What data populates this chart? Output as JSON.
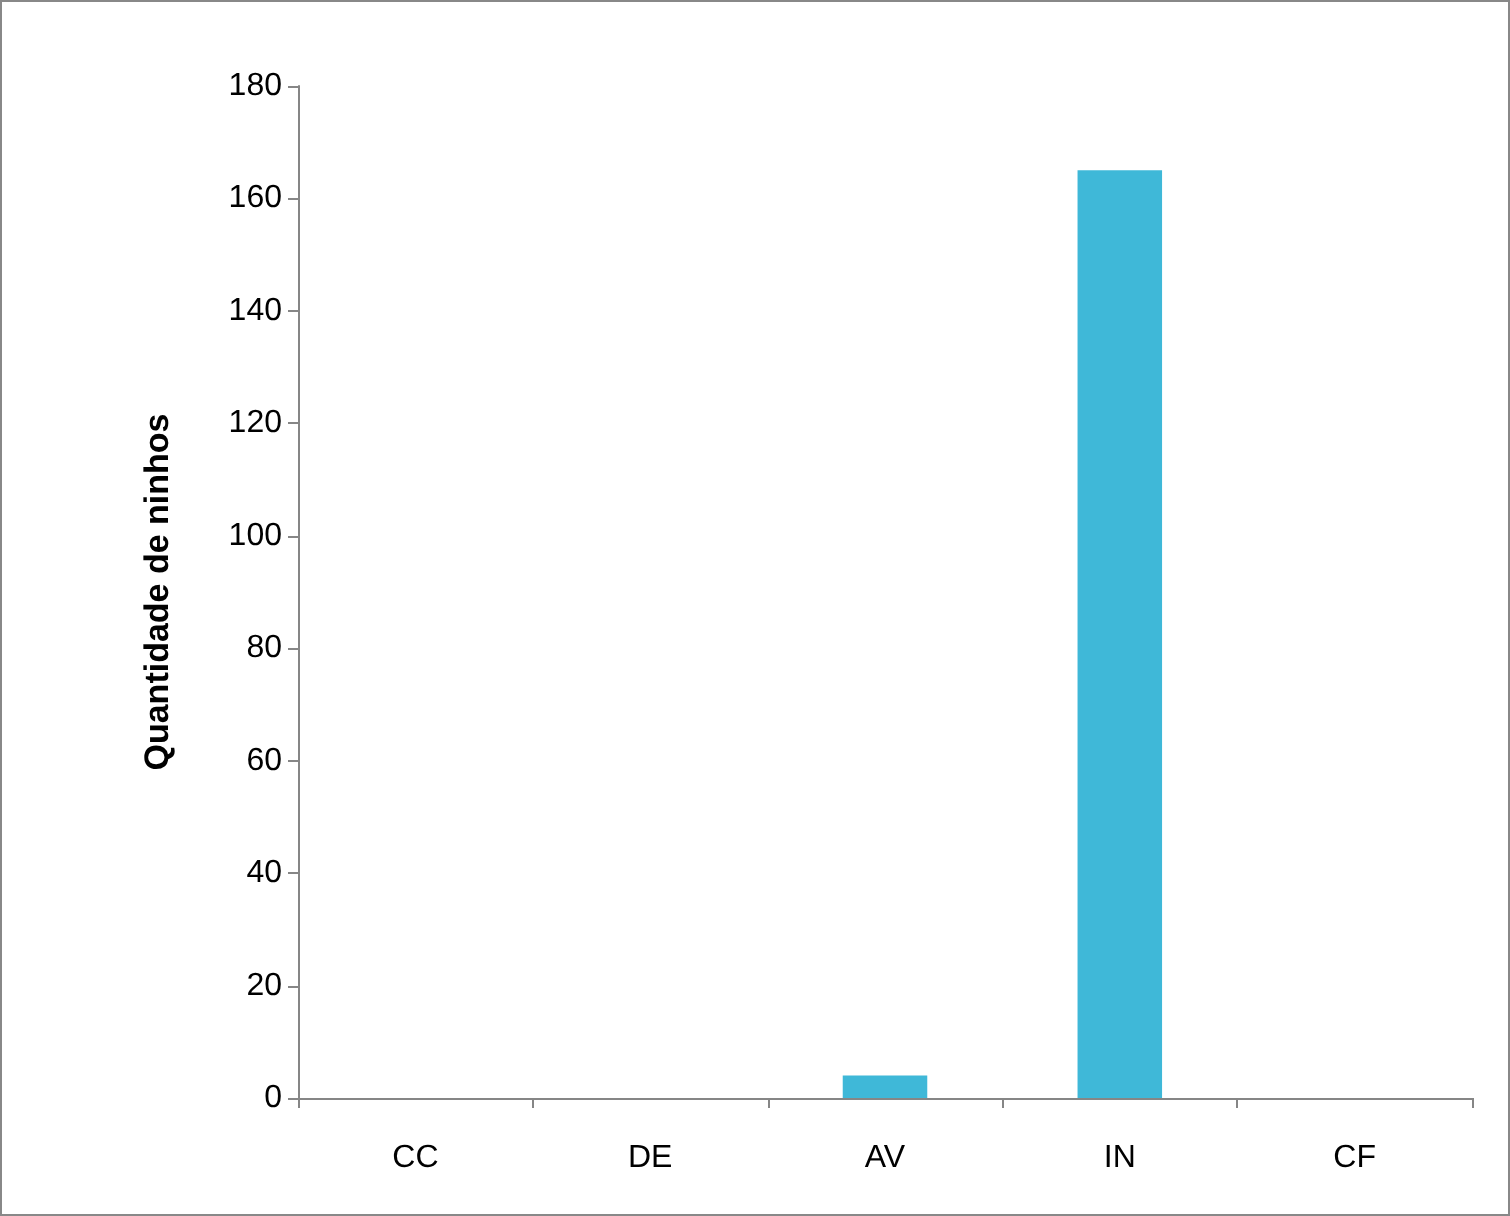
{
  "chart_data": {
    "type": "bar",
    "ylabel": "Quantidade de ninhos",
    "categories": [
      "CC",
      "DE",
      "AV",
      "IN",
      "CF"
    ],
    "values": [
      0,
      0,
      4,
      165,
      0
    ],
    "color": "#3fb8d8",
    "ylim": [
      0,
      180
    ],
    "yticks": [
      0,
      20,
      40,
      60,
      80,
      100,
      120,
      140,
      160,
      180
    ],
    "grid": false
  }
}
